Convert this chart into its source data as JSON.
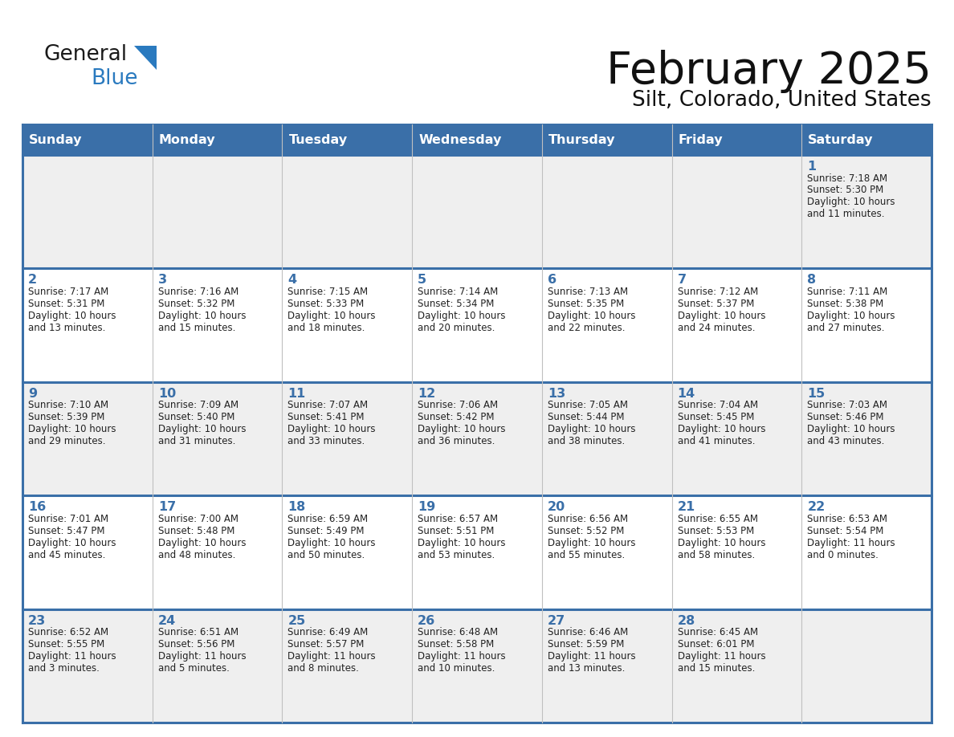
{
  "title": "February 2025",
  "subtitle": "Silt, Colorado, United States",
  "header_color": "#3a6fa8",
  "header_text_color": "#ffffff",
  "cell_bg_light": "#efefef",
  "cell_bg_white": "#ffffff",
  "border_color": "#3a6fa8",
  "text_color": "#222222",
  "day_headers": [
    "Sunday",
    "Monday",
    "Tuesday",
    "Wednesday",
    "Thursday",
    "Friday",
    "Saturday"
  ],
  "days": [
    {
      "day": 1,
      "col": 6,
      "row": 0,
      "sunrise": "7:18 AM",
      "sunset": "5:30 PM",
      "daylight_h": "10 hours",
      "daylight_m": "and 11 minutes."
    },
    {
      "day": 2,
      "col": 0,
      "row": 1,
      "sunrise": "7:17 AM",
      "sunset": "5:31 PM",
      "daylight_h": "10 hours",
      "daylight_m": "and 13 minutes."
    },
    {
      "day": 3,
      "col": 1,
      "row": 1,
      "sunrise": "7:16 AM",
      "sunset": "5:32 PM",
      "daylight_h": "10 hours",
      "daylight_m": "and 15 minutes."
    },
    {
      "day": 4,
      "col": 2,
      "row": 1,
      "sunrise": "7:15 AM",
      "sunset": "5:33 PM",
      "daylight_h": "10 hours",
      "daylight_m": "and 18 minutes."
    },
    {
      "day": 5,
      "col": 3,
      "row": 1,
      "sunrise": "7:14 AM",
      "sunset": "5:34 PM",
      "daylight_h": "10 hours",
      "daylight_m": "and 20 minutes."
    },
    {
      "day": 6,
      "col": 4,
      "row": 1,
      "sunrise": "7:13 AM",
      "sunset": "5:35 PM",
      "daylight_h": "10 hours",
      "daylight_m": "and 22 minutes."
    },
    {
      "day": 7,
      "col": 5,
      "row": 1,
      "sunrise": "7:12 AM",
      "sunset": "5:37 PM",
      "daylight_h": "10 hours",
      "daylight_m": "and 24 minutes."
    },
    {
      "day": 8,
      "col": 6,
      "row": 1,
      "sunrise": "7:11 AM",
      "sunset": "5:38 PM",
      "daylight_h": "10 hours",
      "daylight_m": "and 27 minutes."
    },
    {
      "day": 9,
      "col": 0,
      "row": 2,
      "sunrise": "7:10 AM",
      "sunset": "5:39 PM",
      "daylight_h": "10 hours",
      "daylight_m": "and 29 minutes."
    },
    {
      "day": 10,
      "col": 1,
      "row": 2,
      "sunrise": "7:09 AM",
      "sunset": "5:40 PM",
      "daylight_h": "10 hours",
      "daylight_m": "and 31 minutes."
    },
    {
      "day": 11,
      "col": 2,
      "row": 2,
      "sunrise": "7:07 AM",
      "sunset": "5:41 PM",
      "daylight_h": "10 hours",
      "daylight_m": "and 33 minutes."
    },
    {
      "day": 12,
      "col": 3,
      "row": 2,
      "sunrise": "7:06 AM",
      "sunset": "5:42 PM",
      "daylight_h": "10 hours",
      "daylight_m": "and 36 minutes."
    },
    {
      "day": 13,
      "col": 4,
      "row": 2,
      "sunrise": "7:05 AM",
      "sunset": "5:44 PM",
      "daylight_h": "10 hours",
      "daylight_m": "and 38 minutes."
    },
    {
      "day": 14,
      "col": 5,
      "row": 2,
      "sunrise": "7:04 AM",
      "sunset": "5:45 PM",
      "daylight_h": "10 hours",
      "daylight_m": "and 41 minutes."
    },
    {
      "day": 15,
      "col": 6,
      "row": 2,
      "sunrise": "7:03 AM",
      "sunset": "5:46 PM",
      "daylight_h": "10 hours",
      "daylight_m": "and 43 minutes."
    },
    {
      "day": 16,
      "col": 0,
      "row": 3,
      "sunrise": "7:01 AM",
      "sunset": "5:47 PM",
      "daylight_h": "10 hours",
      "daylight_m": "and 45 minutes."
    },
    {
      "day": 17,
      "col": 1,
      "row": 3,
      "sunrise": "7:00 AM",
      "sunset": "5:48 PM",
      "daylight_h": "10 hours",
      "daylight_m": "and 48 minutes."
    },
    {
      "day": 18,
      "col": 2,
      "row": 3,
      "sunrise": "6:59 AM",
      "sunset": "5:49 PM",
      "daylight_h": "10 hours",
      "daylight_m": "and 50 minutes."
    },
    {
      "day": 19,
      "col": 3,
      "row": 3,
      "sunrise": "6:57 AM",
      "sunset": "5:51 PM",
      "daylight_h": "10 hours",
      "daylight_m": "and 53 minutes."
    },
    {
      "day": 20,
      "col": 4,
      "row": 3,
      "sunrise": "6:56 AM",
      "sunset": "5:52 PM",
      "daylight_h": "10 hours",
      "daylight_m": "and 55 minutes."
    },
    {
      "day": 21,
      "col": 5,
      "row": 3,
      "sunrise": "6:55 AM",
      "sunset": "5:53 PM",
      "daylight_h": "10 hours",
      "daylight_m": "and 58 minutes."
    },
    {
      "day": 22,
      "col": 6,
      "row": 3,
      "sunrise": "6:53 AM",
      "sunset": "5:54 PM",
      "daylight_h": "11 hours",
      "daylight_m": "and 0 minutes."
    },
    {
      "day": 23,
      "col": 0,
      "row": 4,
      "sunrise": "6:52 AM",
      "sunset": "5:55 PM",
      "daylight_h": "11 hours",
      "daylight_m": "and 3 minutes."
    },
    {
      "day": 24,
      "col": 1,
      "row": 4,
      "sunrise": "6:51 AM",
      "sunset": "5:56 PM",
      "daylight_h": "11 hours",
      "daylight_m": "and 5 minutes."
    },
    {
      "day": 25,
      "col": 2,
      "row": 4,
      "sunrise": "6:49 AM",
      "sunset": "5:57 PM",
      "daylight_h": "11 hours",
      "daylight_m": "and 8 minutes."
    },
    {
      "day": 26,
      "col": 3,
      "row": 4,
      "sunrise": "6:48 AM",
      "sunset": "5:58 PM",
      "daylight_h": "11 hours",
      "daylight_m": "and 10 minutes."
    },
    {
      "day": 27,
      "col": 4,
      "row": 4,
      "sunrise": "6:46 AM",
      "sunset": "5:59 PM",
      "daylight_h": "11 hours",
      "daylight_m": "and 13 minutes."
    },
    {
      "day": 28,
      "col": 5,
      "row": 4,
      "sunrise": "6:45 AM",
      "sunset": "6:01 PM",
      "daylight_h": "11 hours",
      "daylight_m": "and 15 minutes."
    }
  ],
  "n_rows": 5,
  "n_cols": 7
}
